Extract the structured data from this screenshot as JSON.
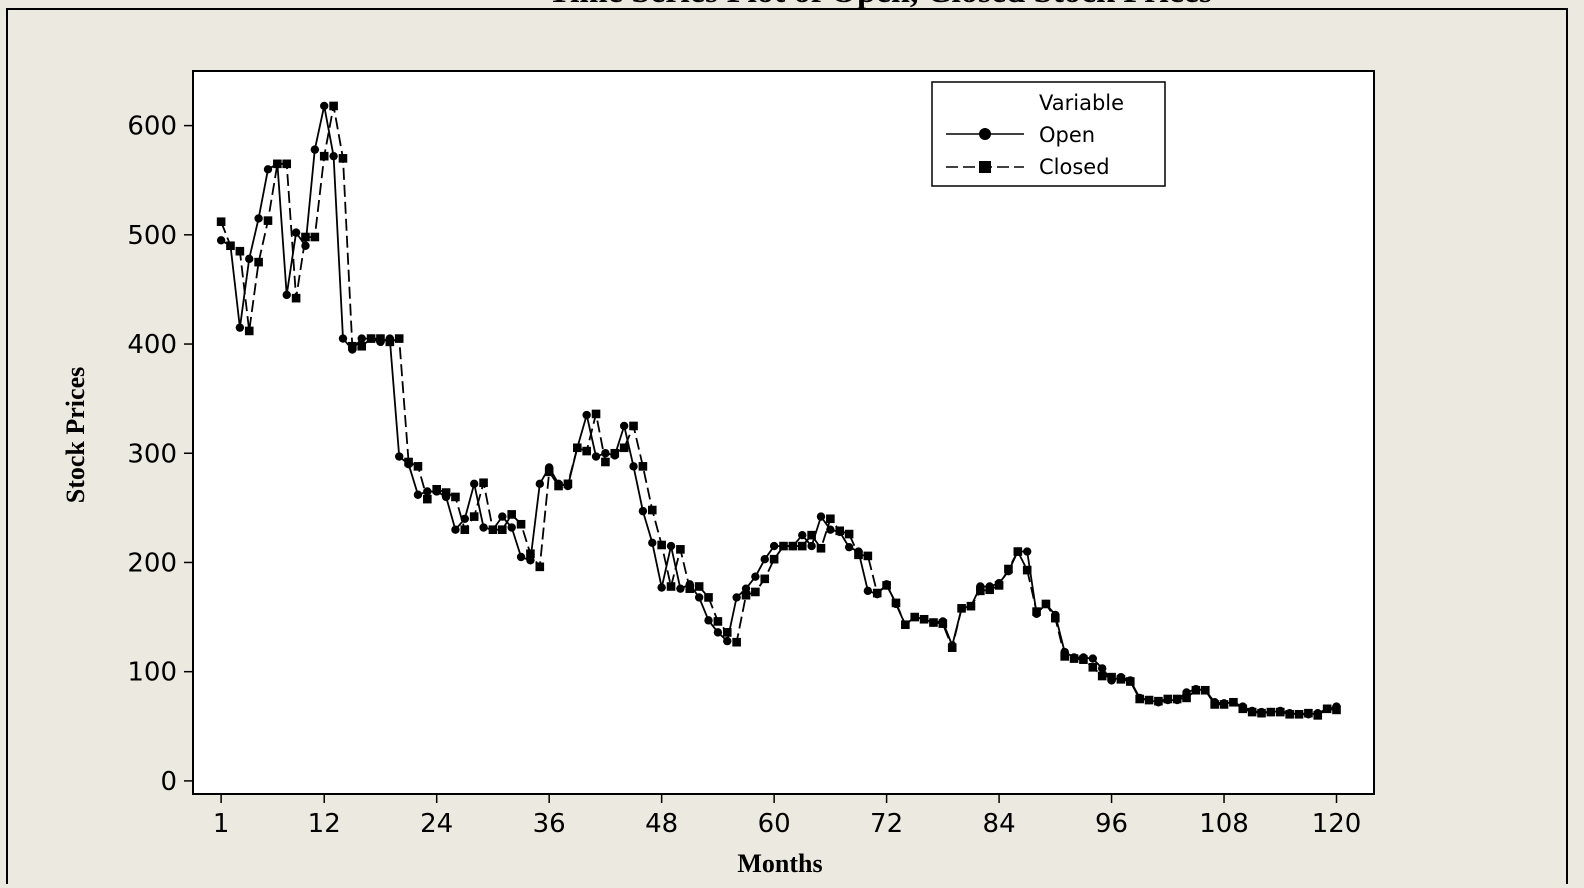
{
  "colors": {
    "background": "#ece9e0",
    "plot_area": "#ffffff",
    "ink": "#000000"
  },
  "chart_data": {
    "type": "line",
    "title": "Time Series Plot of Open, Closed Stock Prices",
    "xlabel": "Months",
    "ylabel": "Stock Prices",
    "xlim": [
      -2,
      124
    ],
    "ylim": [
      -12,
      650
    ],
    "x_ticks": [
      1,
      12,
      24,
      36,
      48,
      60,
      72,
      84,
      96,
      108,
      120
    ],
    "x_tick_labels": [
      "1",
      "12",
      "24",
      "36",
      "48",
      "60",
      "72",
      "84",
      "96",
      "108",
      "120"
    ],
    "y_ticks": [
      0,
      100,
      200,
      300,
      400,
      500,
      600
    ],
    "y_tick_labels": [
      "0",
      "100",
      "200",
      "300",
      "400",
      "500",
      "600"
    ],
    "legend": {
      "title": "Variable",
      "position": "top-right",
      "entries": [
        "Open",
        "Closed"
      ]
    },
    "series": [
      {
        "name": "Open",
        "marker": "circle",
        "line": "solid",
        "values": [
          495,
          490,
          415,
          478,
          515,
          560,
          565,
          445,
          502,
          490,
          578,
          618,
          572,
          405,
          395,
          405,
          405,
          402,
          405,
          297,
          290,
          262,
          265,
          265,
          260,
          230,
          240,
          272,
          232,
          230,
          242,
          232,
          205,
          202,
          272,
          287,
          272,
          270,
          305,
          335,
          297,
          300,
          298,
          325,
          288,
          247,
          218,
          177,
          215,
          176,
          180,
          168,
          147,
          136,
          128,
          168,
          176,
          187,
          203,
          215,
          215,
          215,
          225,
          215,
          242,
          230,
          228,
          214,
          210,
          174,
          171,
          180,
          162,
          143,
          150,
          148,
          145,
          146,
          124,
          158,
          160,
          178,
          178,
          181,
          192,
          210,
          210,
          153,
          162,
          152,
          118,
          113,
          113,
          112,
          103,
          92,
          95,
          92,
          76,
          74,
          72,
          74,
          74,
          81,
          84,
          83,
          72,
          71,
          72,
          68,
          64,
          63,
          63,
          64,
          62,
          61,
          61,
          62,
          66,
          68
        ]
      },
      {
        "name": "Closed",
        "marker": "square",
        "line": "dashed",
        "values": [
          512,
          490,
          485,
          412,
          475,
          513,
          565,
          565,
          442,
          498,
          498,
          572,
          618,
          570,
          398,
          398,
          405,
          405,
          402,
          405,
          292,
          288,
          258,
          267,
          264,
          260,
          230,
          242,
          273,
          230,
          230,
          244,
          235,
          208,
          196,
          283,
          270,
          272,
          305,
          302,
          336,
          292,
          300,
          305,
          325,
          288,
          248,
          216,
          178,
          212,
          176,
          178,
          168,
          146,
          136,
          127,
          170,
          173,
          185,
          203,
          215,
          215,
          215,
          225,
          213,
          240,
          229,
          226,
          207,
          206,
          172,
          179,
          163,
          143,
          150,
          148,
          145,
          144,
          122,
          158,
          160,
          174,
          175,
          179,
          194,
          210,
          193,
          155,
          162,
          149,
          114,
          112,
          111,
          104,
          96,
          95,
          93,
          91,
          75,
          74,
          73,
          75,
          75,
          76,
          83,
          83,
          70,
          70,
          72,
          66,
          63,
          62,
          63,
          63,
          61,
          61,
          62,
          60,
          66,
          65
        ]
      }
    ]
  }
}
